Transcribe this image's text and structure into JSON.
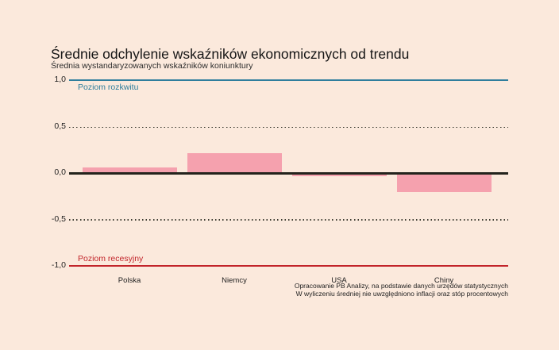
{
  "page": {
    "background_color": "#fbe9dc"
  },
  "chart_data": {
    "type": "bar",
    "title": "Średnie odchylenie wskaźników ekonomicznych od trendu",
    "subtitle": "Średnia wystandaryzowanych wskaźników koniunktury",
    "categories": [
      "Polska",
      "Niemcy",
      "USA",
      "Chiny"
    ],
    "values": [
      0.06,
      0.22,
      -0.03,
      -0.2
    ],
    "bar_color": "#f5a1ae",
    "ylim": [
      -1.0,
      1.0
    ],
    "yticks": [
      {
        "label": "1,0",
        "value": 1.0
      },
      {
        "label": "0,5",
        "value": 0.5
      },
      {
        "label": "0,0",
        "value": 0.0
      },
      {
        "label": "-0,5",
        "value": -0.5
      },
      {
        "label": "-1,0",
        "value": -1.0
      }
    ],
    "reference_lines": [
      {
        "value": 1.0,
        "label": "Poziom rozkwitu",
        "style": "solid",
        "color": "#2f7e9d"
      },
      {
        "value": 0.5,
        "label": "",
        "style": "dotted",
        "color": "#3b3b30"
      },
      {
        "value": 0.0,
        "label": "",
        "style": "solid",
        "color": "#23231c"
      },
      {
        "value": -0.5,
        "label": "",
        "style": "dotted",
        "color": "#3b3b30"
      },
      {
        "value": -1.0,
        "label": "Poziom recesyjny",
        "style": "solid",
        "color": "#c2242a"
      }
    ],
    "grid": "horizontal-dotted",
    "legend": "none",
    "footnotes": [
      "Opracowanie PB Analizy, na podstawie danych urzędów statystycznych",
      "W wyliczeniu średniej nie uwzględniono inflacji oraz stóp procentowych"
    ]
  }
}
